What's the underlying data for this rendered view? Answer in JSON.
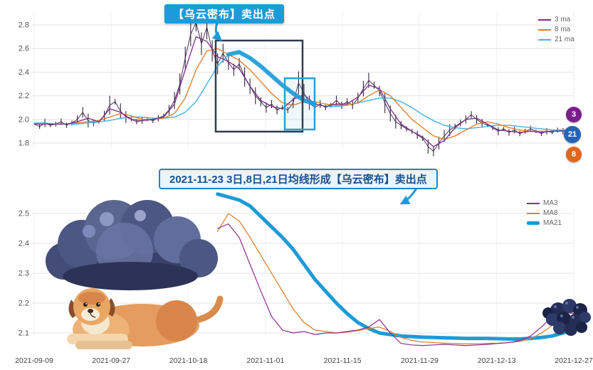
{
  "accents": {
    "banner_blue": "#1b9cd9",
    "dark_box": "#2e3d4f",
    "blue_box": "#2a9fd8",
    "grid_line": "#e4e4ec",
    "grid_line_vertical": "#f0f0f6"
  },
  "chart_data": [
    {
      "type": "line",
      "title": "",
      "ylim": [
        1.65,
        2.95
      ],
      "y_ticks": [
        2.8,
        2.6,
        2.4,
        2.2,
        2.0,
        1.8
      ],
      "legend_position": "top-right",
      "annotations": {
        "banner_text": "【乌云密布】卖出点",
        "banner_bg": "#1b9cd9"
      },
      "legend": [
        {
          "label": "3 ma",
          "color": "#7b2d8b"
        },
        {
          "label": "8 ma",
          "color": "#e07b28"
        },
        {
          "label": "21 ma",
          "color": "#45b1e8"
        }
      ],
      "badges": [
        {
          "label": "3",
          "color": "#7a1f8c"
        },
        {
          "label": "21",
          "color": "#2563b8"
        },
        {
          "label": "8",
          "color": "#e2661f"
        }
      ],
      "series": [
        {
          "name": "price",
          "style": "candles",
          "color": "#35243f",
          "width": 1,
          "start_f": 0,
          "step_f": 0.01,
          "values": [
            1.96,
            1.94,
            1.97,
            1.95,
            1.96,
            1.98,
            1.95,
            1.97,
            2.0,
            2.06,
            1.99,
            1.97,
            1.98,
            2.03,
            2.12,
            2.15,
            2.07,
            2.02,
            2.0,
            1.98,
            1.99,
            2.0,
            1.99,
            2.01,
            2.03,
            2.08,
            2.16,
            2.3,
            2.52,
            2.72,
            2.82,
            2.64,
            2.78,
            2.58,
            2.47,
            2.56,
            2.48,
            2.42,
            2.47,
            2.36,
            2.28,
            2.2,
            2.15,
            2.1,
            2.13,
            2.08,
            2.1,
            2.08,
            2.14,
            2.31,
            2.22,
            2.14,
            2.1,
            2.13,
            2.1,
            2.12,
            2.16,
            2.12,
            2.15,
            2.12,
            2.18,
            2.26,
            2.33,
            2.29,
            2.24,
            2.14,
            2.05,
            1.98,
            1.95,
            1.92,
            1.9,
            1.87,
            1.84,
            1.77,
            1.73,
            1.8,
            1.86,
            1.91,
            1.94,
            1.97,
            2.0,
            2.04,
            2.0,
            1.97,
            1.95,
            1.93,
            1.9,
            1.92,
            1.89,
            1.91,
            1.88,
            1.9,
            1.92,
            1.9,
            1.88,
            1.9,
            1.89,
            1.91,
            1.9,
            1.92,
            1.91
          ]
        },
        {
          "name": "21 ma",
          "style": "line",
          "color": "#45b1e8",
          "width": 1.4,
          "start_f": 0,
          "step_f": 0.02,
          "values": [
            1.97,
            1.97,
            1.96,
            1.96,
            1.96,
            1.97,
            1.98,
            1.99,
            2.01,
            2.02,
            2.02,
            2.01,
            2.01,
            2.02,
            2.06,
            2.15,
            2.3,
            2.45,
            2.55,
            2.57,
            2.52,
            2.45,
            2.37,
            2.29,
            2.22,
            2.16,
            2.13,
            2.11,
            2.11,
            2.12,
            2.14,
            2.16,
            2.18,
            2.18,
            2.15,
            2.1,
            2.04,
            1.99,
            1.95,
            1.93,
            1.92,
            1.93,
            1.94,
            1.95,
            1.95,
            1.94,
            1.93,
            1.92,
            1.91,
            1.91,
            1.91
          ]
        },
        {
          "name": "8 ma",
          "style": "line",
          "color": "#e07b28",
          "width": 1.3,
          "start_f": 0,
          "step_f": 0.02,
          "values": [
            1.96,
            1.96,
            1.96,
            1.96,
            1.97,
            1.98,
            1.99,
            2.02,
            2.05,
            2.03,
            2.0,
            2.0,
            2.01,
            2.05,
            2.18,
            2.42,
            2.58,
            2.6,
            2.55,
            2.5,
            2.42,
            2.32,
            2.22,
            2.14,
            2.12,
            2.15,
            2.15,
            2.13,
            2.12,
            2.12,
            2.14,
            2.2,
            2.25,
            2.2,
            2.1,
            2.0,
            1.93,
            1.86,
            1.83,
            1.86,
            1.91,
            1.96,
            1.98,
            1.96,
            1.93,
            1.91,
            1.9,
            1.9,
            1.9,
            1.9,
            1.9
          ]
        },
        {
          "name": "3 ma",
          "style": "line",
          "color": "#7b2d8b",
          "width": 1.3,
          "start_f": 0,
          "step_f": 0.02,
          "values": [
            1.96,
            1.96,
            1.96,
            1.96,
            1.98,
            2.01,
            1.98,
            2.09,
            2.06,
            2.0,
            1.99,
            2.0,
            2.02,
            2.13,
            2.42,
            2.7,
            2.66,
            2.53,
            2.49,
            2.43,
            2.28,
            2.16,
            2.11,
            2.09,
            2.17,
            2.21,
            2.13,
            2.11,
            2.13,
            2.13,
            2.19,
            2.29,
            2.26,
            2.09,
            1.96,
            1.9,
            1.85,
            1.77,
            1.82,
            1.93,
            2.0,
            2.01,
            1.96,
            1.91,
            1.9,
            1.89,
            1.9,
            1.89,
            1.9,
            1.9,
            1.91
          ]
        },
        {
          "name": "21 ma emphasis",
          "style": "line",
          "color": "#1d9bd7",
          "width": 6,
          "opacity": 0.88,
          "start_f": 0.36,
          "step_f": 0.02,
          "values": [
            2.55,
            2.57,
            2.52,
            2.45,
            2.37,
            2.29,
            2.22,
            2.16,
            2.13
          ]
        }
      ]
    },
    {
      "type": "line",
      "title": "",
      "ylim": [
        2.04,
        2.57
      ],
      "y_ticks": [
        2.5,
        2.4,
        2.3,
        2.2,
        2.1
      ],
      "legend_position": "top-right",
      "x_labels": [
        "2021-09-09",
        "2021-09-27",
        "2021-10-18",
        "2021-11-01",
        "2021-11-15",
        "2021-11-29",
        "2021-12-13",
        "2021-12-27"
      ],
      "annotations": {
        "banner_text": "2021-11-23 3日,8日,21日均线形成【乌云密布】卖出点"
      },
      "legend": [
        {
          "label": "MA3",
          "color": "#8e2d8e",
          "thick": false
        },
        {
          "label": "MA8",
          "color": "#e0812f",
          "thick": false
        },
        {
          "label": "MA21",
          "color": "#1d9bd7",
          "thick": true
        }
      ],
      "series": [
        {
          "name": "MA21",
          "style": "line",
          "color": "#1d9bd7",
          "width": 5,
          "start_f": 0.34,
          "step_f": 0.02,
          "values": [
            2.565,
            2.555,
            2.545,
            2.525,
            2.49,
            2.455,
            2.42,
            2.38,
            2.33,
            2.28,
            2.24,
            2.2,
            2.165,
            2.135,
            2.115,
            2.1,
            2.095,
            2.09,
            2.088,
            2.086,
            2.085,
            2.084,
            2.083,
            2.082,
            2.082,
            2.082,
            2.081,
            2.08,
            2.08,
            2.082,
            2.085,
            2.09,
            2.1,
            2.11
          ]
        },
        {
          "name": "MA8",
          "style": "line",
          "color": "#e0812f",
          "width": 1.3,
          "start_f": 0.34,
          "step_f": 0.02,
          "values": [
            2.44,
            2.5,
            2.475,
            2.42,
            2.36,
            2.3,
            2.24,
            2.18,
            2.135,
            2.11,
            2.105,
            2.1,
            2.103,
            2.108,
            2.115,
            2.12,
            2.105,
            2.085,
            2.075,
            2.07,
            2.068,
            2.066,
            2.065,
            2.064,
            2.064,
            2.065,
            2.066,
            2.068,
            2.072,
            2.08,
            2.1,
            2.125,
            2.145,
            2.15
          ]
        },
        {
          "name": "MA3",
          "style": "line",
          "color": "#8e2d8e",
          "width": 1.2,
          "start_f": 0.34,
          "step_f": 0.02,
          "values": [
            2.45,
            2.465,
            2.42,
            2.33,
            2.24,
            2.155,
            2.11,
            2.1,
            2.105,
            2.095,
            2.1,
            2.1,
            2.105,
            2.11,
            2.12,
            2.145,
            2.1,
            2.065,
            2.06,
            2.058,
            2.06,
            2.062,
            2.06,
            2.058,
            2.06,
            2.062,
            2.065,
            2.068,
            2.075,
            2.09,
            2.12,
            2.155,
            2.17,
            2.165
          ]
        }
      ]
    }
  ]
}
